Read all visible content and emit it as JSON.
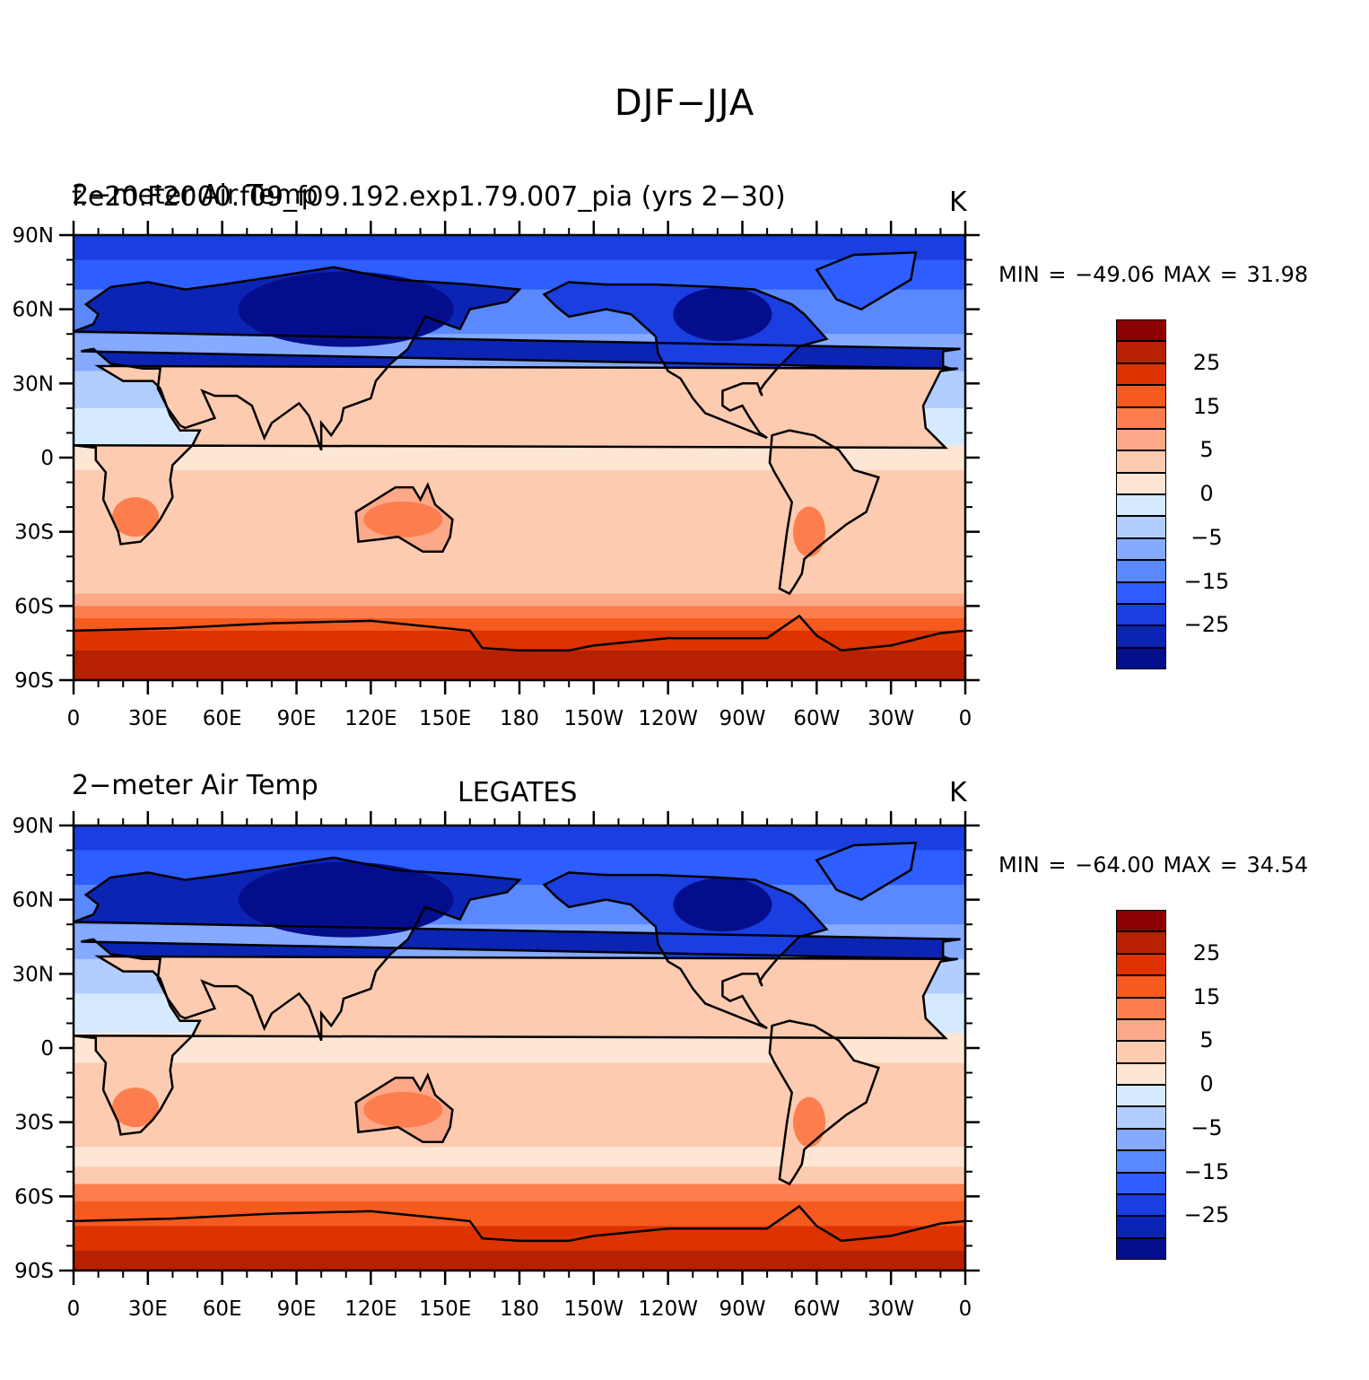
{
  "title": "DJF−JJA",
  "panels": [
    {
      "left_title_a": "2−meter Air Temp",
      "left_title_b": "f.e20.F2000.f09_f09.192.exp1.79.007_pia (yrs 2−30)",
      "center_title": "",
      "units": "K",
      "minmax": "MIN = −49.06  MAX =   31.98"
    },
    {
      "left_title_a": "2−meter Air Temp",
      "left_title_b": "",
      "center_title": "LEGATES",
      "units": "K",
      "minmax": "MIN = −64.00  MAX =   34.54"
    }
  ],
  "lat_labels": [
    "90N",
    "60N",
    "30N",
    "0",
    "30S",
    "60S",
    "90S"
  ],
  "lon_labels": [
    "0",
    "30E",
    "60E",
    "90E",
    "120E",
    "150E",
    "180",
    "150W",
    "120W",
    "90W",
    "60W",
    "30W",
    "0"
  ],
  "colorbar": {
    "labels": [
      "25",
      "15",
      "5",
      "0",
      "−5",
      "−15",
      "−25"
    ],
    "colors": [
      "#8b0000",
      "#b72000",
      "#dc3300",
      "#f55a1e",
      "#fc7e4e",
      "#fca98a",
      "#fdcbb0",
      "#fee6d4",
      "#d6eaff",
      "#b2cdff",
      "#86aaff",
      "#5a88ff",
      "#2e5eff",
      "#1a3ee0",
      "#0c24b4",
      "#040e8c"
    ]
  }
}
